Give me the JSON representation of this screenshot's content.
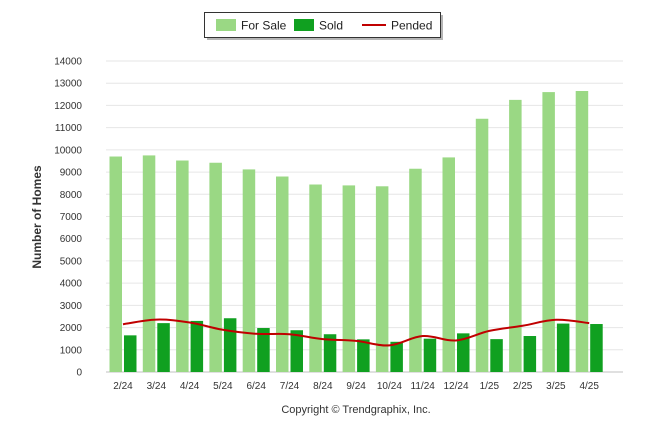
{
  "chart_data": {
    "type": "bar",
    "categories": [
      "2/24",
      "3/24",
      "4/24",
      "5/24",
      "6/24",
      "7/24",
      "8/24",
      "9/24",
      "10/24",
      "11/24",
      "12/24",
      "1/25",
      "2/25",
      "3/25",
      "4/25"
    ],
    "series": [
      {
        "name": "For Sale",
        "type": "bar",
        "color": "#9ad884",
        "values": [
          9700,
          9750,
          9520,
          9420,
          9120,
          8800,
          8440,
          8400,
          8360,
          9150,
          9660,
          11400,
          12250,
          12600,
          12650
        ]
      },
      {
        "name": "Sold",
        "type": "bar",
        "color": "#10a020",
        "values": [
          1650,
          2200,
          2300,
          2420,
          1980,
          1880,
          1700,
          1470,
          1360,
          1500,
          1740,
          1480,
          1620,
          2180,
          2160
        ]
      },
      {
        "name": "Pended",
        "type": "line",
        "color": "#c00000",
        "values": [
          2150,
          2360,
          2230,
          1900,
          1720,
          1700,
          1480,
          1400,
          1200,
          1620,
          1420,
          1850,
          2080,
          2350,
          2200
        ]
      }
    ],
    "ylabel": "Number of Homes",
    "ylim": [
      0,
      14000
    ],
    "yticks": [
      0,
      1000,
      2000,
      3000,
      4000,
      5000,
      6000,
      7000,
      8000,
      9000,
      10000,
      11000,
      12000,
      13000,
      14000
    ],
    "grid": true,
    "legend_position": "top-center",
    "caption": "Copyright © Trendgraphix, Inc."
  }
}
